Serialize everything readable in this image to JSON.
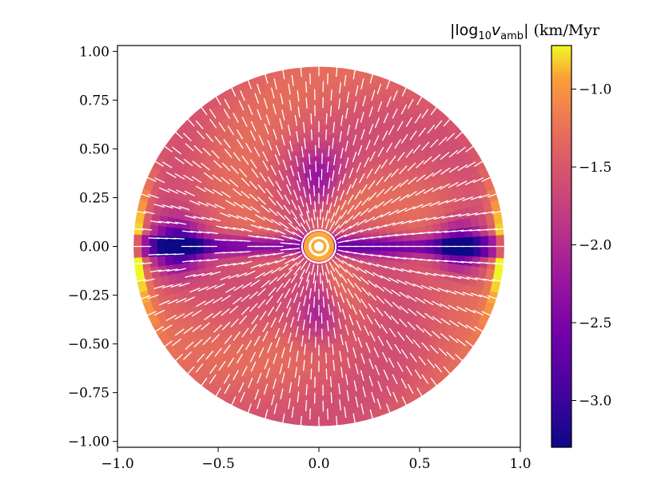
{
  "chart_data": {
    "type": "heatmap",
    "description_kind": "polar disc map with overlaid direction vectors",
    "colorbar": {
      "label_prefix": "|log",
      "label_sub": "10",
      "label_var": "v",
      "label_var_sub": "amb",
      "label_suffix": "| (km/Myr",
      "min": -3.3,
      "max": -0.72,
      "colormap": "plasma",
      "ticks": [
        -1.0,
        -1.5,
        -2.0,
        -2.5,
        -3.0
      ],
      "tick_labels": [
        "−1.0",
        "−1.5",
        "−2.0",
        "−2.5",
        "−3.0"
      ]
    },
    "x_axis": {
      "range": [
        -1.0,
        1.0
      ],
      "ticks": [
        -1.0,
        -0.5,
        0.0,
        0.5,
        1.0
      ],
      "tick_labels": [
        "−1.0",
        "−0.5",
        "0.0",
        "0.5",
        "1.0"
      ]
    },
    "y_axis": {
      "range": [
        -1.03,
        1.03
      ],
      "ticks": [
        1.0,
        0.75,
        0.5,
        0.25,
        0.0,
        -0.25,
        -0.5,
        -0.75,
        -1.0
      ],
      "tick_labels": [
        "1.00",
        "0.75",
        "0.50",
        "0.25",
        "0.00",
        "−0.25",
        "−0.50",
        "−0.75",
        "−1.00"
      ]
    },
    "disc_radius": 0.92,
    "grid": false,
    "vector_color": "#ffffff"
  }
}
